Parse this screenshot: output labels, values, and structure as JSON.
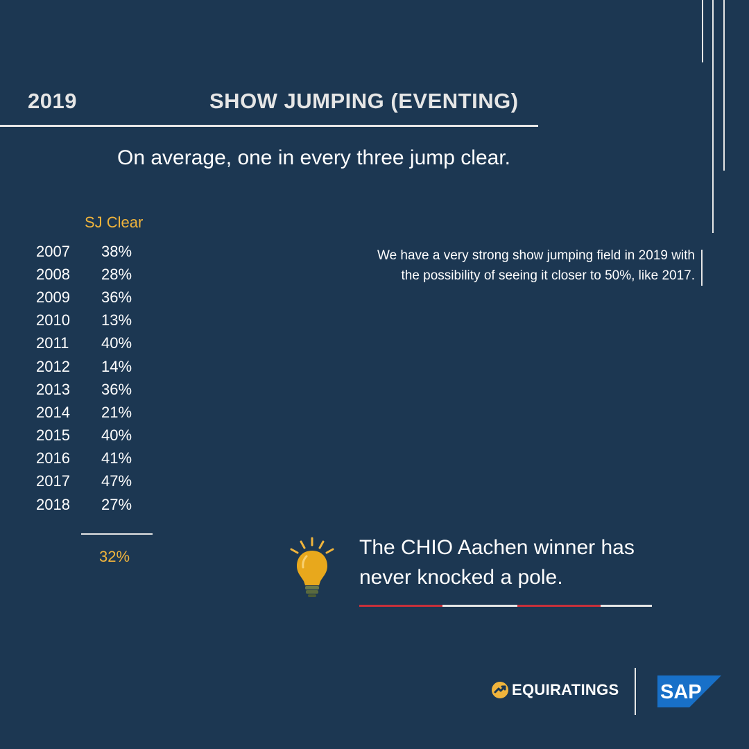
{
  "header": {
    "year": "2019",
    "title": "SHOW JUMPING (EVENTING)"
  },
  "subtitle": "On average, one in every three jump clear.",
  "table": {
    "column_header": "SJ Clear",
    "rows": [
      {
        "year": "2007",
        "value": "38%"
      },
      {
        "year": "2008",
        "value": "28%"
      },
      {
        "year": "2009",
        "value": "36%"
      },
      {
        "year": "2010",
        "value": "13%"
      },
      {
        "year": "2011",
        "value": "40%"
      },
      {
        "year": "2012",
        "value": "14%"
      },
      {
        "year": "2013",
        "value": "36%"
      },
      {
        "year": "2014",
        "value": "21%"
      },
      {
        "year": "2015",
        "value": "40%"
      },
      {
        "year": "2016",
        "value": "41%"
      },
      {
        "year": "2017",
        "value": "47%"
      },
      {
        "year": "2018",
        "value": "27%"
      }
    ],
    "average": "32%"
  },
  "note": {
    "line1": "We have a very strong show jumping field in 2019 with",
    "line2": "the possibility of seeing it closer to 50%, like 2017."
  },
  "fact": {
    "line1": "The CHIO Aachen winner has",
    "line2": "never knocked a pole.",
    "icon": "lightbulb-icon"
  },
  "branding": {
    "equiratings": "EQUIRATINGS",
    "sap": "SAP"
  },
  "colors": {
    "background": "#1c3752",
    "accent": "#f0b43c",
    "rule": "#e6e6e6",
    "red": "#c8303a",
    "sap_blue": "#1870c8"
  }
}
